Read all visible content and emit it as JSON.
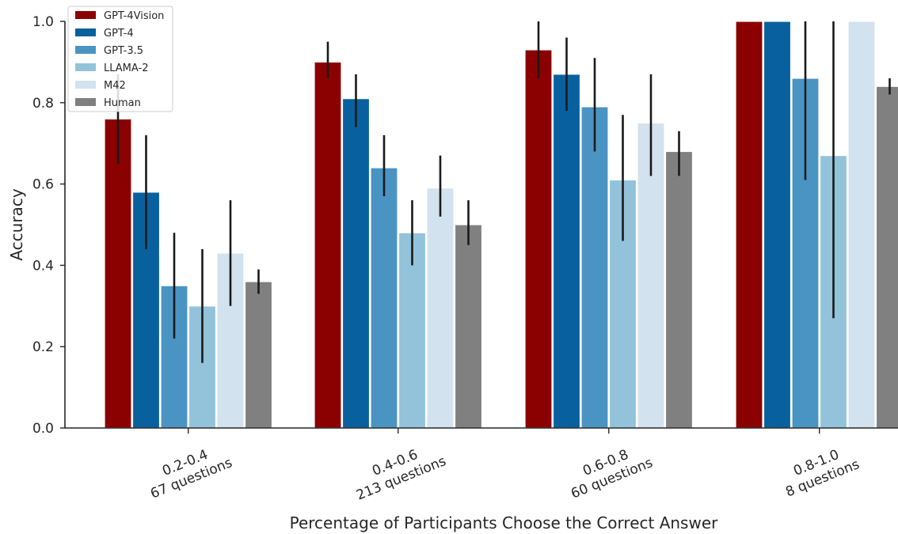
{
  "chart_data": {
    "type": "bar",
    "xlabel": "Percentage of Participants Choose the Correct Answer",
    "ylabel": "Accuracy",
    "ylim": [
      0,
      1.0
    ],
    "yticks": [
      "0.0",
      "0.2",
      "0.4",
      "0.6",
      "0.8",
      "1.0"
    ],
    "categories": [
      [
        "0.2-0.4",
        "67 questions"
      ],
      [
        "0.4-0.6",
        "213 questions"
      ],
      [
        "0.6-0.8",
        "60 questions"
      ],
      [
        "0.8-1.0",
        "8 questions"
      ]
    ],
    "legend_position": "top-left",
    "grid": false,
    "error_bars": true,
    "series": [
      {
        "name": "GPT-4Vision",
        "color": "#8b0000",
        "values": [
          0.76,
          0.9,
          0.93,
          1.0
        ],
        "err_low": [
          0.65,
          0.86,
          0.86,
          1.0
        ],
        "err_high": [
          0.87,
          0.95,
          1.0,
          1.0
        ]
      },
      {
        "name": "GPT-4",
        "color": "#08619e",
        "values": [
          0.58,
          0.81,
          0.87,
          1.0
        ],
        "err_low": [
          0.44,
          0.74,
          0.78,
          1.0
        ],
        "err_high": [
          0.72,
          0.87,
          0.96,
          1.0
        ]
      },
      {
        "name": "GPT-3.5",
        "color": "#4a94c4",
        "values": [
          0.35,
          0.64,
          0.79,
          0.86
        ],
        "err_low": [
          0.22,
          0.57,
          0.68,
          0.61
        ],
        "err_high": [
          0.48,
          0.72,
          0.91,
          1.0
        ]
      },
      {
        "name": "LLAMA-2",
        "color": "#93c2db",
        "values": [
          0.3,
          0.48,
          0.61,
          0.67
        ],
        "err_low": [
          0.16,
          0.4,
          0.46,
          0.27
        ],
        "err_high": [
          0.44,
          0.56,
          0.77,
          1.0
        ]
      },
      {
        "name": "M42",
        "color": "#d2e2ef",
        "values": [
          0.43,
          0.59,
          0.75,
          1.0
        ],
        "err_low": [
          0.3,
          0.52,
          0.62,
          1.0
        ],
        "err_high": [
          0.56,
          0.67,
          0.87,
          1.0
        ]
      },
      {
        "name": "Human",
        "color": "#808080",
        "values": [
          0.36,
          0.5,
          0.68,
          0.84
        ],
        "err_low": [
          0.33,
          0.45,
          0.62,
          0.82
        ],
        "err_high": [
          0.39,
          0.56,
          0.73,
          0.86
        ]
      }
    ]
  }
}
